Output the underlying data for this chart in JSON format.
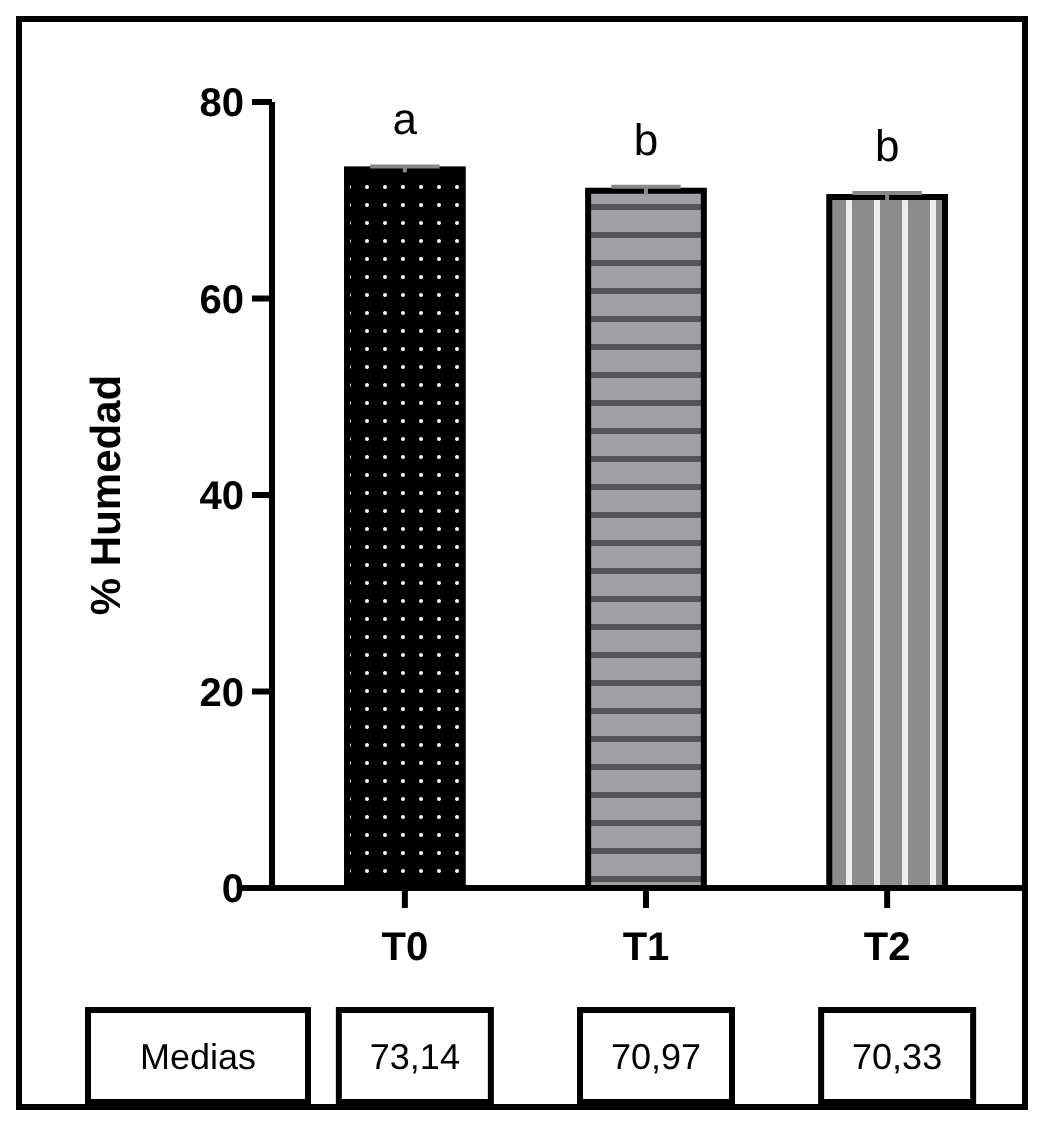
{
  "chart_data": {
    "type": "bar",
    "ylabel": "% Humedad",
    "categories": [
      "T0",
      "T1",
      "T2"
    ],
    "values": [
      73.14,
      70.97,
      70.33
    ],
    "colors": [
      "#000000",
      "#a0a0a4",
      "#8c8c8c"
    ],
    "errors": [
      0.3,
      0.4,
      0.4
    ],
    "value_labels": [
      "73,14",
      "70,97",
      "70,33"
    ],
    "ylim": [
      0,
      80
    ],
    "yticks": [
      0,
      20,
      40,
      60,
      80
    ],
    "annotations": [
      "a",
      "b",
      "b",
      "Medias"
    ]
  }
}
